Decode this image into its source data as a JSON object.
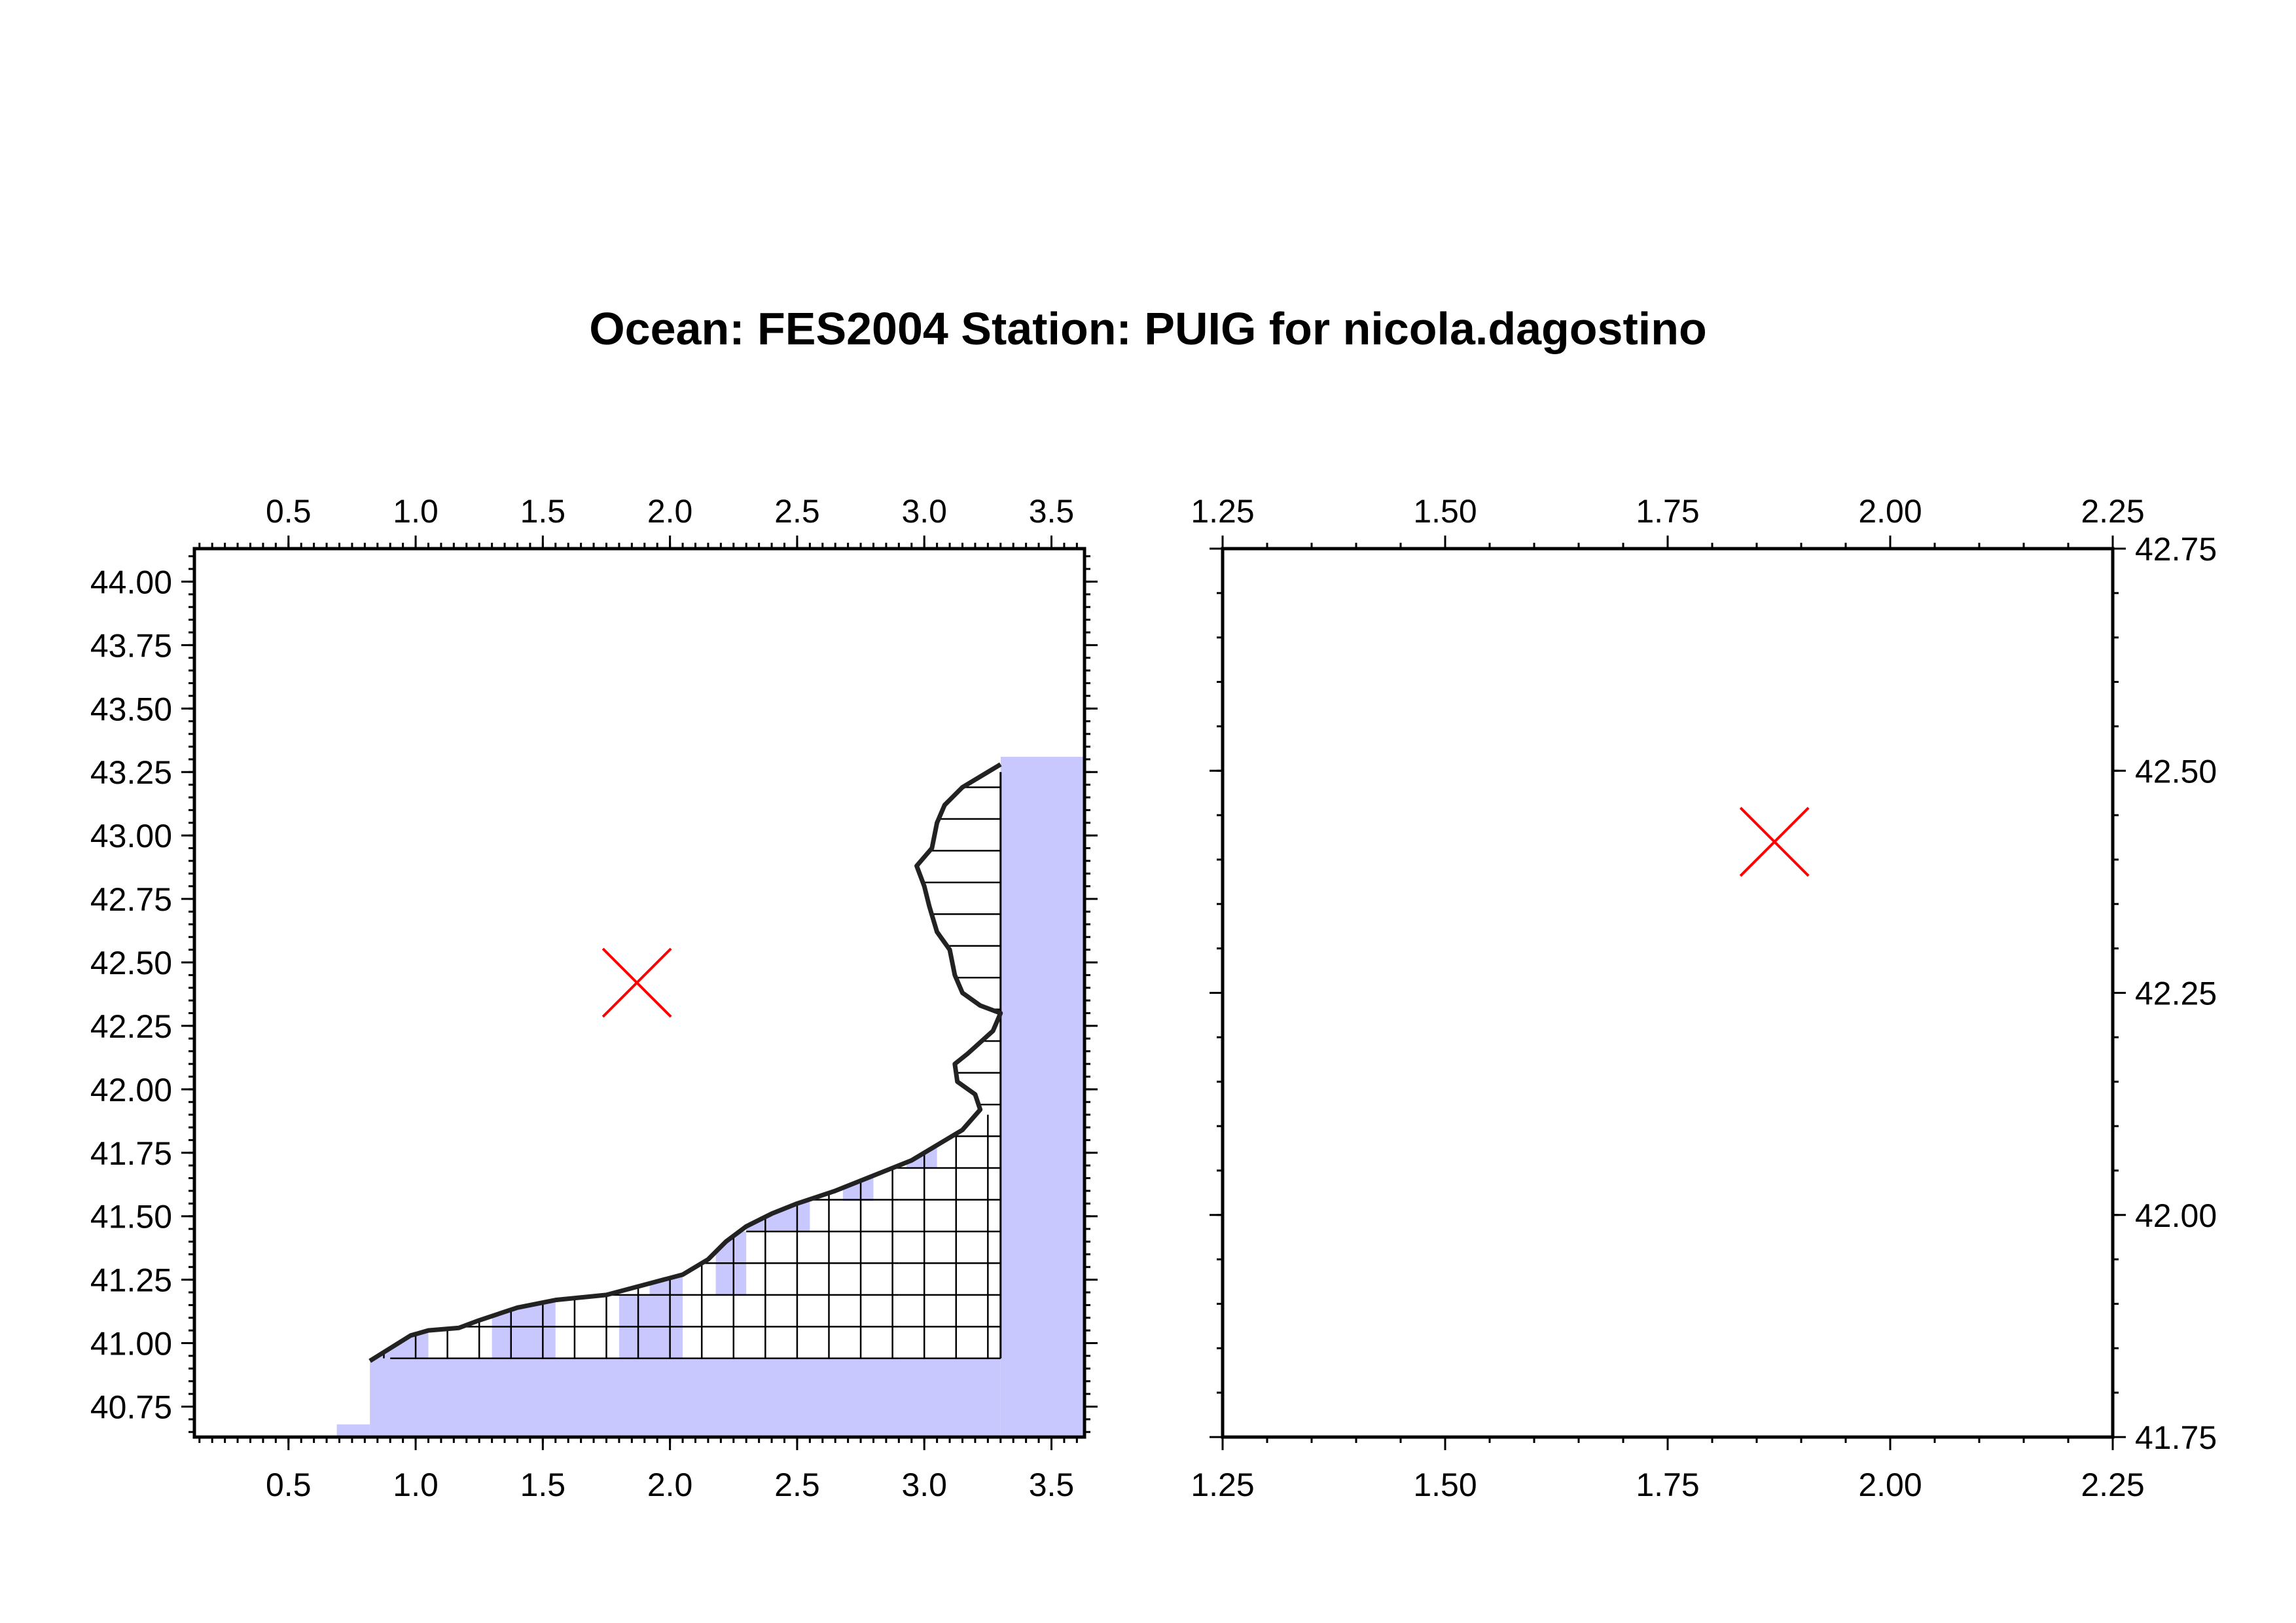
{
  "title": "Ocean: FES2004  Station: PUIG  for nicola.dagostino",
  "colors": {
    "ocean_fill": "#c8c8ff",
    "station_marker": "#ff0000",
    "frame": "#000000"
  },
  "left_map": {
    "x_range": [
      0.13,
      3.63
    ],
    "y_range": [
      40.63,
      44.13
    ],
    "x_tick_labels": [
      "0.5",
      "1.0",
      "1.5",
      "2.0",
      "2.5",
      "3.0",
      "3.5"
    ],
    "y_tick_labels": [
      "40.75",
      "41.00",
      "41.25",
      "41.50",
      "41.75",
      "42.00",
      "42.25",
      "42.50",
      "42.75",
      "43.00",
      "43.25",
      "43.50",
      "43.75",
      "44.00"
    ],
    "station": {
      "lon": 1.87,
      "lat": 42.42
    },
    "coastline": [
      [
        0.82,
        40.93
      ],
      [
        0.9,
        40.98
      ],
      [
        0.98,
        41.03
      ],
      [
        1.05,
        41.05
      ],
      [
        1.17,
        41.06
      ],
      [
        1.25,
        41.09
      ],
      [
        1.4,
        41.14
      ],
      [
        1.55,
        41.17
      ],
      [
        1.75,
        41.19
      ],
      [
        1.9,
        41.23
      ],
      [
        2.05,
        41.27
      ],
      [
        2.15,
        41.33
      ],
      [
        2.22,
        41.4
      ],
      [
        2.3,
        41.46
      ],
      [
        2.4,
        41.51
      ],
      [
        2.5,
        41.55
      ],
      [
        2.65,
        41.6
      ],
      [
        2.8,
        41.66
      ],
      [
        2.95,
        41.72
      ],
      [
        3.05,
        41.78
      ],
      [
        3.15,
        41.84
      ],
      [
        3.22,
        41.92
      ],
      [
        3.2,
        41.98
      ],
      [
        3.13,
        42.03
      ],
      [
        3.12,
        42.1
      ],
      [
        3.17,
        42.14
      ],
      [
        3.27,
        42.23
      ],
      [
        3.3,
        42.3
      ],
      [
        3.22,
        42.33
      ],
      [
        3.15,
        42.38
      ],
      [
        3.12,
        42.45
      ],
      [
        3.1,
        42.55
      ],
      [
        3.05,
        42.62
      ],
      [
        3.02,
        42.72
      ],
      [
        3.0,
        42.8
      ],
      [
        2.97,
        42.88
      ],
      [
        3.03,
        42.95
      ],
      [
        3.05,
        43.05
      ],
      [
        3.08,
        43.12
      ],
      [
        3.15,
        43.19
      ],
      [
        3.25,
        43.25
      ],
      [
        3.3,
        43.28
      ]
    ],
    "grid_boxes": [
      {
        "lon": [
          3.3,
          3.63
        ],
        "lat": [
          40.63,
          43.31
        ]
      },
      {
        "lon": [
          0.82,
          3.3
        ],
        "lat": [
          40.63,
          40.94
        ]
      },
      {
        "lon": [
          0.69,
          0.82
        ],
        "lat": [
          40.63,
          40.68
        ]
      },
      {
        "lon": [
          0.82,
          1.05
        ],
        "lat": [
          40.94,
          41.06
        ]
      },
      {
        "lon": [
          1.3,
          1.55
        ],
        "lat": [
          40.94,
          41.19
        ]
      },
      {
        "lon": [
          1.8,
          2.05
        ],
        "lat": [
          40.94,
          41.19
        ]
      },
      {
        "lon": [
          1.92,
          2.05
        ],
        "lat": [
          41.19,
          41.31
        ]
      },
      {
        "lon": [
          2.18,
          2.3
        ],
        "lat": [
          41.19,
          41.44
        ]
      },
      {
        "lon": [
          2.3,
          2.55
        ],
        "lat": [
          41.44,
          41.56
        ]
      },
      {
        "lon": [
          2.68,
          2.8
        ],
        "lat": [
          41.56,
          41.69
        ]
      },
      {
        "lon": [
          2.93,
          3.05
        ],
        "lat": [
          41.69,
          41.81
        ]
      }
    ]
  },
  "right_map": {
    "x_range": [
      1.25,
      2.25
    ],
    "y_range": [
      41.75,
      42.75
    ],
    "x_tick_labels": [
      "1.25",
      "1.50",
      "1.75",
      "2.00",
      "2.25"
    ],
    "y_tick_labels": [
      "41.75",
      "42.00",
      "42.25",
      "42.50",
      "42.75"
    ],
    "station": {
      "lon": 1.87,
      "lat": 42.42
    }
  }
}
